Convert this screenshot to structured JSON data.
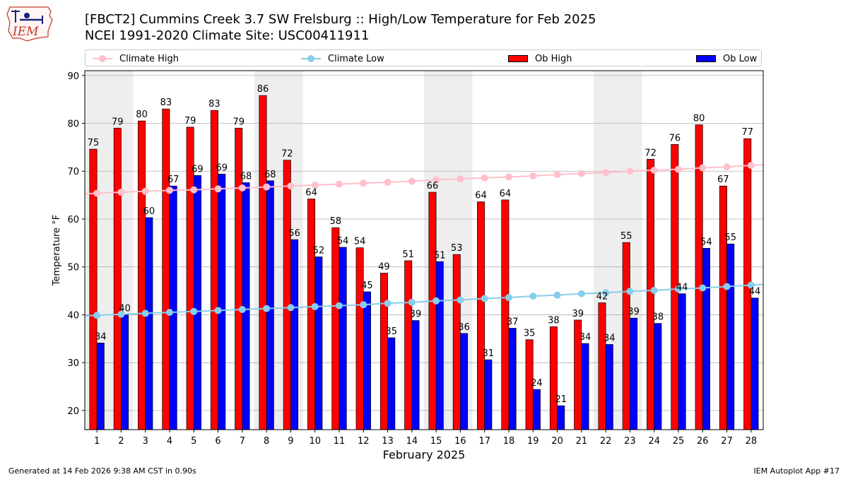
{
  "header": {
    "logo_text": "IEM",
    "title_line1": "[FBCT2] Cummins Creek 3.7 SW Frelsburg :: High/Low Temperature for Feb 2025",
    "title_line2": "NCEI 1991-2020 Climate Site: USC00411911"
  },
  "colors": {
    "climate_high": "#ffc0cb",
    "climate_low": "#87ceeb",
    "ob_high": "#ff0000",
    "ob_low": "#0000ff",
    "weekend_shade": "#eeeeee"
  },
  "legend": {
    "climate_high": "Climate High",
    "climate_low": "Climate Low",
    "ob_high": "Ob High",
    "ob_low": "Ob Low"
  },
  "footer": {
    "left": "Generated at 14 Feb 2026 9:38 AM CST in 0.90s",
    "right": "IEM Autoplot App #17"
  },
  "chart_data": {
    "type": "bar",
    "xlabel": "February 2025",
    "ylabel": "Temperature °F",
    "ylim": [
      16,
      91
    ],
    "yticks": [
      20,
      30,
      40,
      50,
      60,
      70,
      80,
      90
    ],
    "grid": "horizontal",
    "legend_position": "top",
    "categories": [
      1,
      2,
      3,
      4,
      5,
      6,
      7,
      8,
      9,
      10,
      11,
      12,
      13,
      14,
      15,
      16,
      17,
      18,
      19,
      20,
      21,
      22,
      23,
      24,
      25,
      26,
      27,
      28
    ],
    "shaded_days": [
      1,
      2,
      8,
      9,
      15,
      16,
      22,
      23
    ],
    "series": [
      {
        "name": "Ob High",
        "kind": "bar",
        "values": [
          74.6,
          79.0,
          80.5,
          83.0,
          79.2,
          82.7,
          79.0,
          85.8,
          72.3,
          64.2,
          58.2,
          54.0,
          48.7,
          51.3,
          65.6,
          52.6,
          63.6,
          64.0,
          34.8,
          37.5,
          38.9,
          42.5,
          55.1,
          72.5,
          75.6,
          79.7,
          66.9,
          76.8
        ],
        "labels": [
          "75",
          "79",
          "80",
          "83",
          "79",
          "83",
          "79",
          "86",
          "72",
          "64",
          "58",
          "54",
          "49",
          "51",
          "66",
          "53",
          "64",
          "64",
          "35",
          "38",
          "39",
          "42",
          "55",
          "72",
          "76",
          "80",
          "67",
          "77"
        ]
      },
      {
        "name": "Ob Low",
        "kind": "bar",
        "values": [
          34.1,
          40.0,
          60.3,
          66.9,
          69.1,
          69.4,
          67.6,
          68.0,
          55.7,
          52.1,
          54.1,
          44.8,
          35.2,
          38.8,
          51.1,
          36.1,
          30.6,
          37.2,
          24.4,
          21.0,
          34.0,
          33.8,
          39.3,
          38.2,
          44.4,
          53.9,
          54.8,
          43.5
        ],
        "labels": [
          "34",
          "40",
          "60",
          "67",
          "69",
          "69",
          "68",
          "68",
          "56",
          "52",
          "54",
          "45",
          "35",
          "39",
          "51",
          "36",
          "31",
          "37",
          "24",
          "21",
          "34",
          "34",
          "39",
          "38",
          "44",
          "54",
          "55",
          "44"
        ]
      },
      {
        "name": "Climate High",
        "kind": "line",
        "values": [
          65.4,
          65.6,
          65.8,
          66.0,
          66.1,
          66.3,
          66.5,
          66.7,
          66.9,
          67.1,
          67.3,
          67.5,
          67.7,
          67.9,
          68.2,
          68.4,
          68.6,
          68.8,
          69.0,
          69.3,
          69.5,
          69.7,
          70.0,
          70.2,
          70.4,
          70.7,
          70.9,
          71.2
        ]
      },
      {
        "name": "Climate Low",
        "kind": "line",
        "values": [
          39.9,
          40.1,
          40.3,
          40.5,
          40.7,
          40.9,
          41.1,
          41.3,
          41.5,
          41.7,
          41.9,
          42.1,
          42.4,
          42.6,
          42.9,
          43.1,
          43.4,
          43.6,
          43.9,
          44.1,
          44.4,
          44.6,
          44.9,
          45.1,
          45.4,
          45.6,
          45.9,
          46.2
        ]
      }
    ]
  }
}
